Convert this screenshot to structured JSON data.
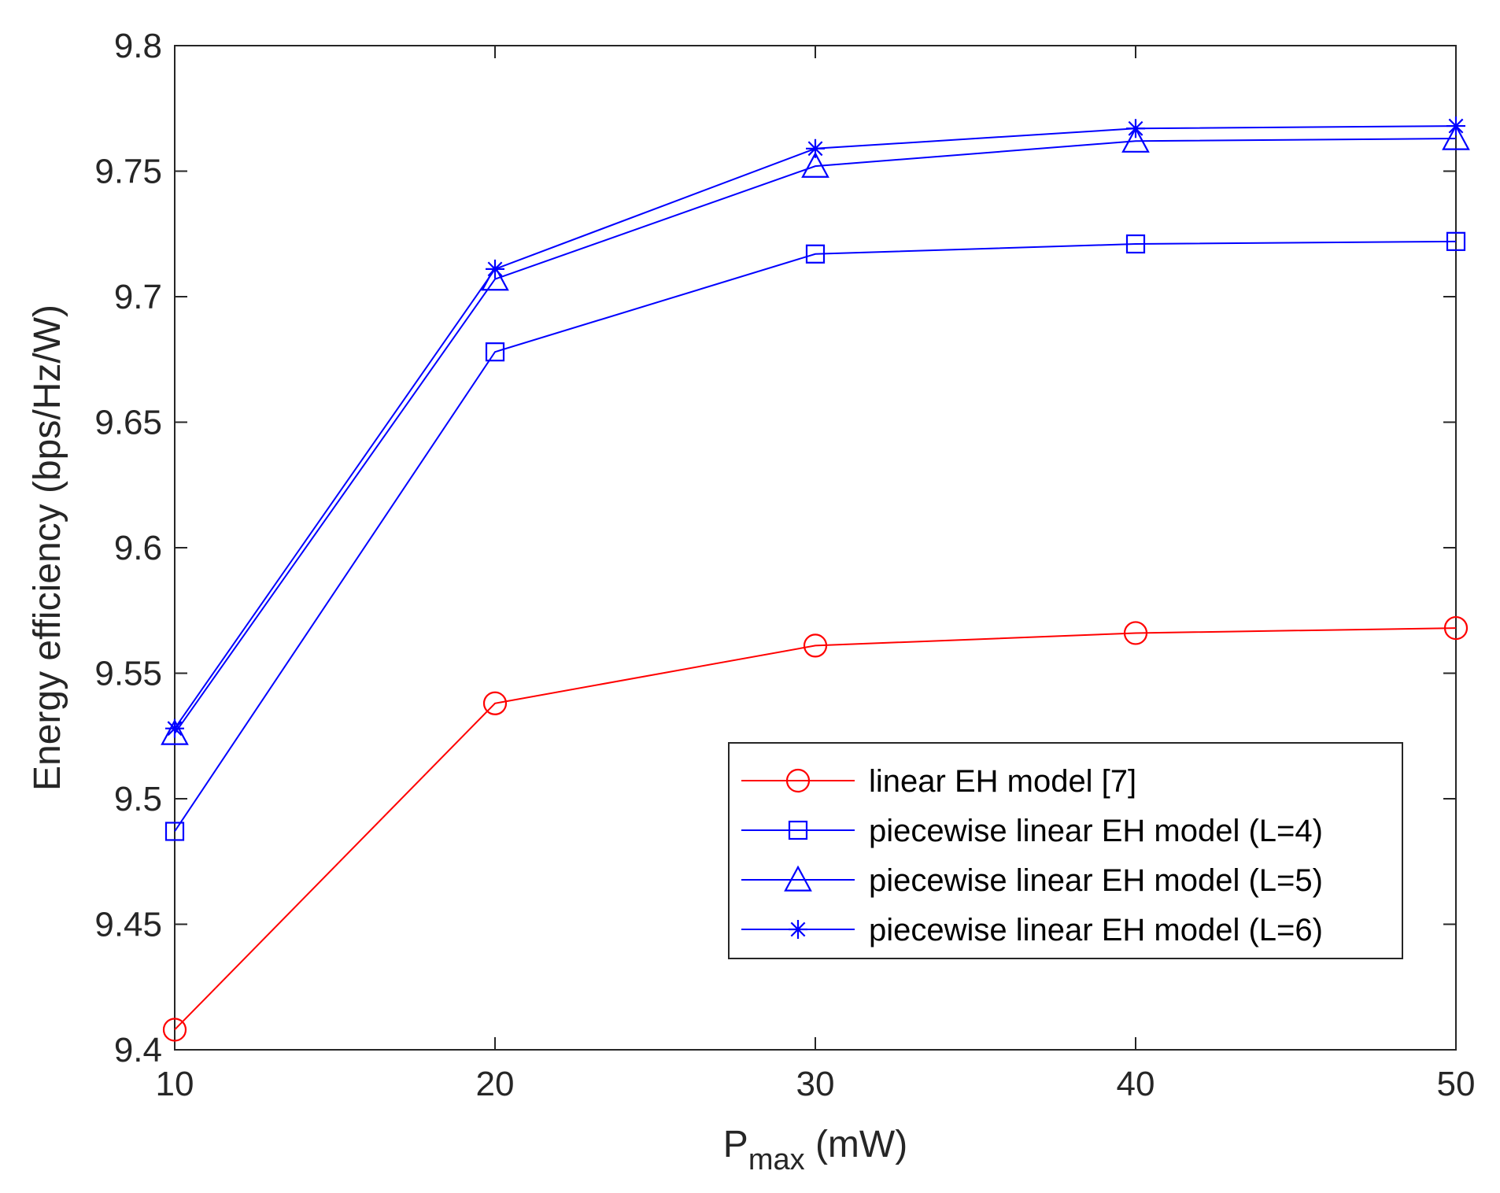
{
  "chart_data": {
    "type": "line",
    "title": "",
    "xlabel": {
      "main": "P",
      "sub": "max",
      "unit": " (mW)"
    },
    "ylabel": "Energy efficiency (bps/Hz/W)",
    "x": [
      10,
      20,
      30,
      40,
      50
    ],
    "xlim": [
      10,
      50
    ],
    "ylim": [
      9.4,
      9.8
    ],
    "xticks": [
      10,
      20,
      30,
      40,
      50
    ],
    "xtick_labels": [
      "10",
      "20",
      "30",
      "40",
      "50"
    ],
    "yticks": [
      9.4,
      9.45,
      9.5,
      9.55,
      9.6,
      9.65,
      9.7,
      9.75,
      9.8
    ],
    "ytick_labels": [
      "9.4",
      "9.45",
      "9.5",
      "9.55",
      "9.6",
      "9.65",
      "9.7",
      "9.75",
      "9.8"
    ],
    "grid": false,
    "legend_position": "bottom-right",
    "series": [
      {
        "name": "linear EH model [7]",
        "color": "#ff0000",
        "marker": "circle",
        "values": [
          9.408,
          9.538,
          9.561,
          9.566,
          9.568
        ]
      },
      {
        "name": "piecewise linear EH model (L=4)",
        "color": "#0000ff",
        "marker": "square",
        "values": [
          9.487,
          9.678,
          9.717,
          9.721,
          9.722
        ]
      },
      {
        "name": "piecewise linear EH model (L=5)",
        "color": "#0000ff",
        "marker": "triangle",
        "values": [
          9.526,
          9.707,
          9.752,
          9.762,
          9.763
        ]
      },
      {
        "name": "piecewise linear EH model (L=6)",
        "color": "#0000ff",
        "marker": "star",
        "values": [
          9.528,
          9.711,
          9.759,
          9.767,
          9.768
        ]
      }
    ]
  }
}
